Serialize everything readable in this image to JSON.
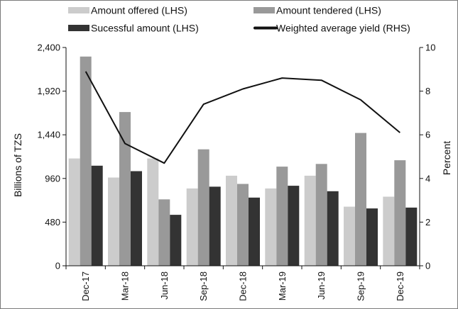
{
  "chart_data": {
    "type": "bar",
    "title": "",
    "categories": [
      "Dec-17",
      "Mar-18",
      "Jun-18",
      "Sep-18",
      "Dec-18",
      "Mar-19",
      "Jun-19",
      "Sep-19",
      "Dec-19"
    ],
    "series": [
      {
        "name": "Amount offered (LHS)",
        "type": "bar",
        "axis": "left",
        "color": "#cccccc",
        "values": [
          1180,
          970,
          1180,
          850,
          990,
          850,
          990,
          650,
          760
        ]
      },
      {
        "name": "Amount tendered (LHS)",
        "type": "bar",
        "axis": "left",
        "color": "#999999",
        "values": [
          2300,
          1690,
          730,
          1280,
          900,
          1090,
          1120,
          1460,
          1160
        ]
      },
      {
        "name": "Sucessful amount (LHS)",
        "type": "bar",
        "axis": "left",
        "color": "#333333",
        "values": [
          1100,
          1040,
          560,
          870,
          750,
          880,
          820,
          630,
          640
        ]
      },
      {
        "name": "Weighted average yield (RHS)",
        "type": "line",
        "axis": "right",
        "color": "#111111",
        "values": [
          8.9,
          5.6,
          4.7,
          7.4,
          8.1,
          8.6,
          8.5,
          7.6,
          6.1
        ]
      }
    ],
    "ylabel_left": "Billions of TZS",
    "ylabel_right": "Percent",
    "ylim_left": [
      0,
      2400
    ],
    "ylim_right": [
      0,
      10
    ],
    "yticks_left": [
      "0",
      "480",
      "960",
      "1,440",
      "1,920",
      "2,400"
    ],
    "yticks_right": [
      "0",
      "2",
      "4",
      "6",
      "8",
      "10"
    ],
    "grid": false,
    "legend_position": "top"
  }
}
